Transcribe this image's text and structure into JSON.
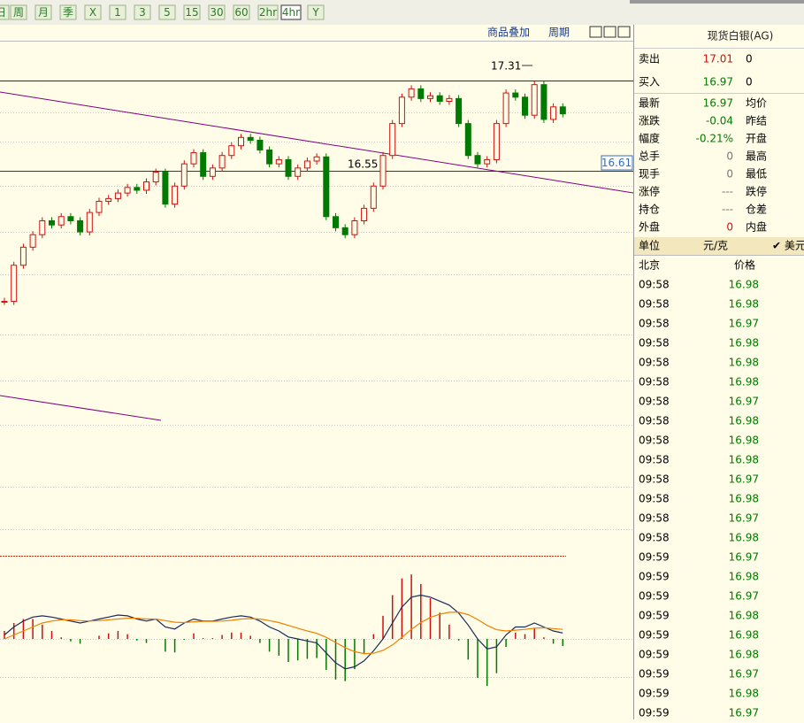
{
  "toolbar": {
    "buttons": [
      "日",
      "周",
      "月",
      "季",
      "X",
      "1",
      "3",
      "5",
      "15",
      "30",
      "60",
      "2hr",
      "4hr",
      "Y"
    ],
    "selected": "4hr"
  },
  "chart": {
    "type": "candlestick",
    "links": [
      "商品叠加",
      "周期"
    ],
    "high_label": "17.31",
    "level_label": "16.55",
    "price_label": "16.61",
    "ylim": [
      14.03,
      17.54
    ],
    "closes": [
      15.67,
      15.93,
      16.06,
      16.15,
      16.25,
      16.22,
      16.28,
      16.25,
      16.17,
      16.31,
      16.39,
      16.41,
      16.45,
      16.49,
      16.47,
      16.53,
      16.6,
      16.37,
      16.5,
      16.66,
      16.74,
      16.57,
      16.63,
      16.72,
      16.79,
      16.85,
      16.83,
      16.76,
      16.66,
      16.69,
      16.57,
      16.63,
      16.68,
      16.71,
      16.28,
      16.2,
      16.15,
      16.25,
      16.34,
      16.5,
      16.72,
      16.95,
      17.14,
      17.2,
      17.13,
      17.15,
      17.11,
      17.13,
      16.95,
      16.72,
      16.66,
      16.69,
      16.95,
      17.17,
      17.14,
      17.01,
      17.23,
      16.98,
      17.07,
      17.02
    ],
    "macd": {
      "ylim": [
        -0.2,
        0.2
      ],
      "dif": [
        0.01,
        0.03,
        0.045,
        0.055,
        0.058,
        0.055,
        0.05,
        0.045,
        0.04,
        0.045,
        0.05,
        0.055,
        0.06,
        0.058,
        0.05,
        0.045,
        0.05,
        0.03,
        0.025,
        0.04,
        0.05,
        0.045,
        0.045,
        0.05,
        0.055,
        0.058,
        0.055,
        0.045,
        0.03,
        0.02,
        0.005,
        0,
        -0.005,
        -0.01,
        -0.035,
        -0.06,
        -0.075,
        -0.07,
        -0.055,
        -0.03,
        0,
        0.04,
        0.08,
        0.105,
        0.11,
        0.105,
        0.095,
        0.085,
        0.065,
        0.035,
        0,
        -0.025,
        -0.02,
        0.01,
        0.03,
        0.03,
        0.04,
        0.03,
        0.02,
        0.015
      ],
      "dea": [
        0,
        0.01,
        0.02,
        0.03,
        0.04,
        0.045,
        0.048,
        0.048,
        0.046,
        0.045,
        0.046,
        0.048,
        0.05,
        0.052,
        0.052,
        0.05,
        0.05,
        0.046,
        0.042,
        0.041,
        0.043,
        0.044,
        0.044,
        0.045,
        0.047,
        0.05,
        0.051,
        0.05,
        0.046,
        0.041,
        0.034,
        0.027,
        0.02,
        0.014,
        0.004,
        -0.009,
        -0.022,
        -0.032,
        -0.037,
        -0.036,
        -0.029,
        -0.015,
        0.004,
        0.024,
        0.041,
        0.054,
        0.062,
        0.067,
        0.067,
        0.061,
        0.049,
        0.034,
        0.023,
        0.02,
        0.022,
        0.024,
        0.027,
        0.028,
        0.026,
        0.024
      ],
      "hist": [
        0.02,
        0.04,
        0.05,
        0.05,
        0.036,
        0.02,
        0.004,
        -0.006,
        -0.012,
        0,
        0.008,
        0.014,
        0.02,
        0.012,
        -0.004,
        -0.01,
        0,
        -0.032,
        -0.034,
        -0.002,
        0.014,
        0.002,
        0.002,
        0.01,
        0.016,
        0.016,
        0.008,
        -0.01,
        -0.032,
        -0.042,
        -0.058,
        -0.054,
        -0.05,
        -0.048,
        -0.078,
        -0.102,
        -0.106,
        -0.076,
        -0.036,
        0.012,
        0.058,
        0.11,
        0.152,
        0.162,
        0.138,
        0.102,
        0.066,
        0.036,
        -0.004,
        -0.052,
        -0.098,
        -0.118,
        -0.086,
        -0.02,
        0.016,
        0.012,
        0.026,
        0.004,
        -0.012,
        -0.018
      ]
    }
  },
  "quote": {
    "title": "现货白银(AG)",
    "sell": {
      "label": "卖出",
      "price": "17.01",
      "vol": "0"
    },
    "buy": {
      "label": "买入",
      "price": "16.97",
      "vol": "0"
    },
    "rows": [
      [
        "最新",
        "16.97",
        "均价"
      ],
      [
        "涨跌",
        "-0.04",
        "昨结"
      ],
      [
        "幅度",
        "-0.21%",
        "开盘"
      ],
      [
        "总手",
        "0",
        "最高"
      ],
      [
        "现手",
        "0",
        "最低"
      ],
      [
        "涨停",
        "---",
        "跌停"
      ],
      [
        "持仓",
        "---",
        "仓差"
      ],
      [
        "外盘",
        "0",
        "内盘"
      ]
    ],
    "unit": [
      "单位",
      "元/克",
      "✔ 美元"
    ],
    "tick_header": [
      "北京",
      "价格"
    ],
    "ticks": [
      [
        "09:58",
        "16.98"
      ],
      [
        "09:58",
        "16.98"
      ],
      [
        "09:58",
        "16.97"
      ],
      [
        "09:58",
        "16.98"
      ],
      [
        "09:58",
        "16.98"
      ],
      [
        "09:58",
        "16.98"
      ],
      [
        "09:58",
        "16.97"
      ],
      [
        "09:58",
        "16.98"
      ],
      [
        "09:58",
        "16.98"
      ],
      [
        "09:58",
        "16.98"
      ],
      [
        "09:58",
        "16.97"
      ],
      [
        "09:58",
        "16.98"
      ],
      [
        "09:58",
        "16.97"
      ],
      [
        "09:58",
        "16.98"
      ],
      [
        "09:59",
        "16.97"
      ],
      [
        "09:59",
        "16.98"
      ],
      [
        "09:59",
        "16.97"
      ],
      [
        "09:59",
        "16.98"
      ],
      [
        "09:59",
        "16.98"
      ],
      [
        "09:59",
        "16.98"
      ],
      [
        "09:59",
        "16.97"
      ],
      [
        "09:59",
        "16.98"
      ],
      [
        "09:59",
        "16.97"
      ]
    ]
  }
}
